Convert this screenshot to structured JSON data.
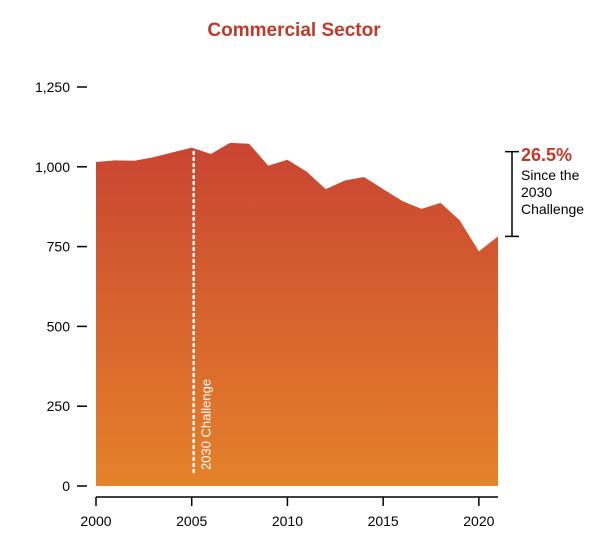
{
  "chart_data": {
    "type": "area",
    "title": "Commercial Sector",
    "xlabel": "",
    "ylabel": "",
    "x": [
      2000,
      2001,
      2002,
      2003,
      2004,
      2005,
      2006,
      2007,
      2008,
      2009,
      2010,
      2011,
      2012,
      2013,
      2014,
      2015,
      2016,
      2017,
      2018,
      2019,
      2020,
      2021
    ],
    "values": [
      1015,
      1020,
      1019,
      1030,
      1045,
      1060,
      1040,
      1075,
      1072,
      1003,
      1022,
      985,
      930,
      957,
      968,
      930,
      893,
      868,
      887,
      832,
      735,
      782
    ],
    "xticks": [
      "2000",
      "2005",
      "2010",
      "2015",
      "2020"
    ],
    "yticks": [
      "0",
      "250",
      "500",
      "750",
      "1,000",
      "1,250"
    ],
    "ylim": [
      0,
      1250
    ],
    "xlim": [
      2000,
      2021
    ],
    "grid": false,
    "reference_line": {
      "x": 2005,
      "label": "2030 Challenge"
    },
    "annotation": {
      "percent": "26.5%",
      "lines": [
        "Since the",
        "2030",
        "Challenge"
      ],
      "from_value": 1060,
      "to_value": 782
    },
    "colors": {
      "title": "#c0392b",
      "area_top": "#c94432",
      "area_bottom": "#e5822a",
      "percent": "#c0392b",
      "reference_line": "#ffffff"
    }
  }
}
